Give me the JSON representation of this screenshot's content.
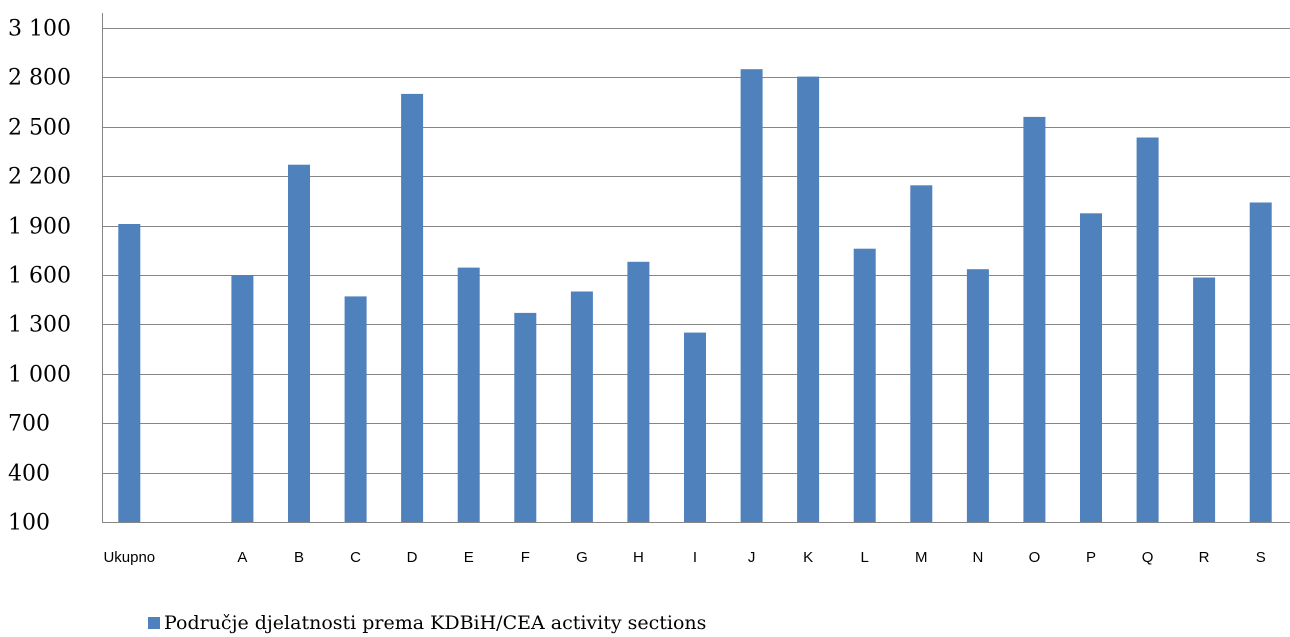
{
  "chart_data": {
    "type": "bar",
    "title": "",
    "xlabel": "",
    "ylabel": "",
    "ylim": [
      100,
      3100
    ],
    "yticks": [
      100,
      400,
      700,
      1000,
      1300,
      1600,
      1900,
      2200,
      2500,
      2800,
      3100
    ],
    "ytick_labels": [
      "100",
      "400",
      "700",
      "1 000",
      "1 300",
      "1 600",
      "1 900",
      "2 200",
      "2 500",
      "2 800",
      "3 100"
    ],
    "grid": true,
    "legend_position": "bottom",
    "categories": [
      "Ukupno",
      "",
      "A",
      "B",
      "C",
      "D",
      "E",
      "F",
      "G",
      "H",
      "I",
      "J",
      "K",
      "L",
      "M",
      "N",
      "O",
      "P",
      "Q",
      "R",
      "S"
    ],
    "series": [
      {
        "name": "Područje djelatnosti prema KDBiH/CEA activity sections",
        "color": "#4f81bd",
        "values": [
          1910,
          null,
          1600,
          2270,
          1470,
          2700,
          1645,
          1370,
          1500,
          1680,
          1250,
          2850,
          2805,
          1760,
          2145,
          1635,
          2560,
          1975,
          2435,
          1585,
          2040
        ]
      }
    ]
  }
}
